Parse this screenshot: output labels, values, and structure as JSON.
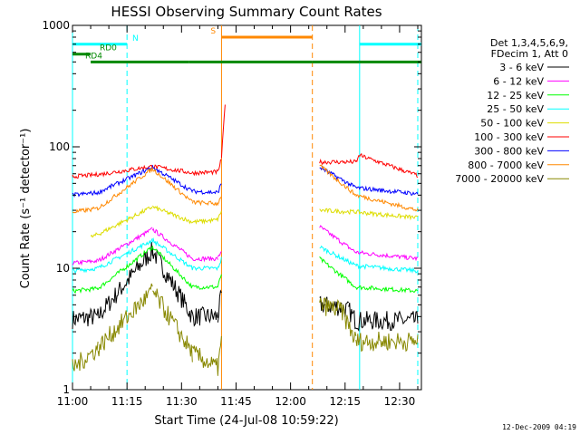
{
  "chart_data": {
    "type": "line",
    "title": "HESSI Observing Summary Count Rates",
    "xlabel": "Start Time (24-Jul-08 10:59:22)",
    "ylabel": "Count Rate (s⁻¹ detector⁻¹)",
    "y_scale": "log",
    "xlim": [
      "11:00",
      "12:36"
    ],
    "ylim": [
      1,
      1000
    ],
    "x_ticks": [
      "11:00",
      "11:15",
      "11:30",
      "11:45",
      "12:00",
      "12:15",
      "12:30"
    ],
    "y_ticks": [
      1,
      10,
      100,
      1000
    ],
    "grid": false,
    "legend_position": "right, outside plot",
    "legend_header": [
      "Det 1,3,4,5,6,9,",
      "FDecim 1, Att 0"
    ],
    "timestamp": "12-Dec-2009 04:19",
    "series": [
      {
        "name": "3 - 6 keV",
        "color": "#000000",
        "values": [
          [
            "11:00",
            3.8
          ],
          [
            "11:07",
            4
          ],
          [
            "11:22",
            14
          ],
          [
            "11:33",
            4
          ],
          [
            "11:40",
            4
          ],
          [
            "11:41",
            6
          ],
          [
            "12:08",
            5
          ],
          [
            "12:14",
            4.8
          ],
          [
            "12:16",
            4.5
          ],
          [
            "12:18",
            3.7
          ],
          [
            "12:35",
            3.7
          ]
        ]
      },
      {
        "name": "6 - 12 keV",
        "color": "#ff00ff",
        "values": [
          [
            "11:00",
            11
          ],
          [
            "11:07",
            11.5
          ],
          [
            "11:22",
            21
          ],
          [
            "11:33",
            12
          ],
          [
            "11:40",
            12
          ],
          [
            "11:41",
            14
          ],
          [
            "12:08",
            22
          ],
          [
            "12:18",
            13.5
          ],
          [
            "12:35",
            12
          ]
        ]
      },
      {
        "name": "12 - 25 keV",
        "color": "#00ff00",
        "values": [
          [
            "11:00",
            6.5
          ],
          [
            "11:07",
            6.8
          ],
          [
            "11:22",
            15
          ],
          [
            "11:33",
            7
          ],
          [
            "11:40",
            7
          ],
          [
            "11:41",
            9
          ],
          [
            "12:08",
            12
          ],
          [
            "12:18",
            7
          ],
          [
            "12:35",
            6.5
          ]
        ]
      },
      {
        "name": "25 - 50 keV",
        "color": "#00ffff",
        "values": [
          [
            "11:00",
            9.5
          ],
          [
            "11:07",
            10
          ],
          [
            "11:22",
            17
          ],
          [
            "11:33",
            10
          ],
          [
            "11:40",
            10
          ],
          [
            "11:41",
            12
          ],
          [
            "12:08",
            15
          ],
          [
            "12:18",
            10.5
          ],
          [
            "12:35",
            9.5
          ]
        ]
      },
      {
        "name": "50 - 100 keV",
        "color": "#dddd00",
        "values": [
          [
            "11:05",
            18
          ],
          [
            "11:07",
            19
          ],
          [
            "11:22",
            32
          ],
          [
            "11:33",
            24
          ],
          [
            "11:40",
            25
          ],
          [
            "11:41",
            30
          ],
          [
            "12:08",
            30
          ],
          [
            "12:18",
            29
          ],
          [
            "12:35",
            26
          ]
        ]
      },
      {
        "name": "100 - 300 keV",
        "color": "#ff0000",
        "values": [
          [
            "11:00",
            57
          ],
          [
            "11:07",
            59
          ],
          [
            "11:22",
            69
          ],
          [
            "11:33",
            61
          ],
          [
            "11:40",
            62
          ],
          [
            "11:41",
            80
          ],
          [
            "11:42",
            230
          ],
          [
            "12:08",
            75
          ],
          [
            "12:18",
            75
          ],
          [
            "12:19",
            85
          ],
          [
            "12:35",
            58
          ]
        ]
      },
      {
        "name": "300 - 800 keV",
        "color": "#0000ff",
        "values": [
          [
            "11:00",
            40
          ],
          [
            "11:07",
            42
          ],
          [
            "11:22",
            68
          ],
          [
            "11:33",
            43
          ],
          [
            "11:40",
            42
          ],
          [
            "11:41",
            50
          ],
          [
            "12:08",
            68
          ],
          [
            "12:18",
            46
          ],
          [
            "12:35",
            41
          ]
        ]
      },
      {
        "name": "800 - 7000 keV",
        "color": "#ff8800",
        "values": [
          [
            "11:00",
            29
          ],
          [
            "11:07",
            31
          ],
          [
            "11:22",
            66
          ],
          [
            "11:33",
            35
          ],
          [
            "11:40",
            34
          ],
          [
            "11:41",
            40
          ],
          [
            "12:08",
            70
          ],
          [
            "12:18",
            40
          ],
          [
            "12:35",
            30
          ]
        ]
      },
      {
        "name": "7000 - 20000 keV",
        "color": "#888800",
        "values": [
          [
            "11:00",
            1.5
          ],
          [
            "11:07",
            2.2
          ],
          [
            "11:22",
            6.5
          ],
          [
            "11:33",
            2
          ],
          [
            "11:40",
            1.5
          ],
          [
            "11:41",
            2.5
          ],
          [
            "12:08",
            5
          ],
          [
            "12:14",
            4.5
          ],
          [
            "12:18",
            2.5
          ],
          [
            "12:35",
            2.5
          ]
        ]
      }
    ],
    "flag_bars": [
      {
        "label": "N",
        "color": "#00ffff",
        "segments": [
          [
            "11:00",
            "11:15"
          ],
          [
            "12:19",
            "12:36"
          ]
        ],
        "level": 700
      },
      {
        "label": "RD0",
        "color": "#008800",
        "segments": [
          [
            "11:00",
            "11:05"
          ]
        ],
        "level": 580
      },
      {
        "label": "RD4",
        "color": "#008800",
        "segments": [
          [
            "11:05",
            "11:32"
          ],
          [
            "11:32",
            "12:06"
          ],
          [
            "12:06",
            "12:19"
          ],
          [
            "12:19",
            "12:36"
          ]
        ],
        "level": 500
      },
      {
        "label": "S",
        "color": "#ff8800",
        "segments": [
          [
            "11:41",
            "12:06"
          ]
        ],
        "level": 800
      }
    ],
    "vlines": [
      {
        "time": "11:00",
        "color": "#00ffff",
        "style": "solid"
      },
      {
        "time": "11:15",
        "color": "#00ffff",
        "style": "dashed"
      },
      {
        "time": "11:41",
        "color": "#ff8800",
        "style": "solid"
      },
      {
        "time": "12:06",
        "color": "#ff8800",
        "style": "dashed"
      },
      {
        "time": "12:19",
        "color": "#00ffff",
        "style": "solid"
      },
      {
        "time": "12:35",
        "color": "#00ffff",
        "style": "dashed"
      }
    ]
  }
}
